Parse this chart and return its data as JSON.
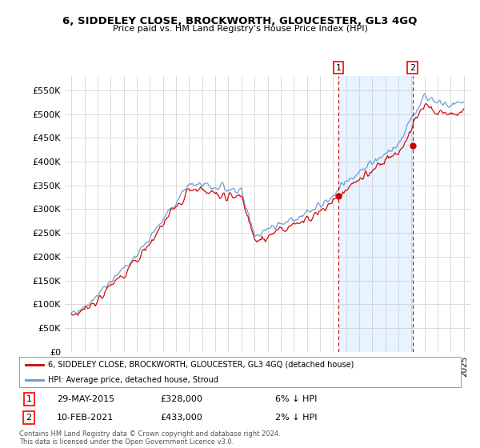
{
  "title": "6, SIDDELEY CLOSE, BROCKWORTH, GLOUCESTER, GL3 4GQ",
  "subtitle": "Price paid vs. HM Land Registry's House Price Index (HPI)",
  "ylim": [
    0,
    580000
  ],
  "yticks": [
    0,
    50000,
    100000,
    150000,
    200000,
    250000,
    300000,
    350000,
    400000,
    450000,
    500000,
    550000
  ],
  "ytick_labels": [
    "£0",
    "£50K",
    "£100K",
    "£150K",
    "£200K",
    "£250K",
    "£300K",
    "£350K",
    "£400K",
    "£450K",
    "£500K",
    "£550K"
  ],
  "hpi_color": "#6699CC",
  "price_color": "#CC0000",
  "sale1_t": 2015.42,
  "sale2_t": 2021.08,
  "sale1_price": 328000,
  "sale2_price": 433000,
  "sale1": {
    "date": "29-MAY-2015",
    "price": 328000,
    "pct": "6%",
    "dir": "↓"
  },
  "sale2": {
    "date": "10-FEB-2021",
    "price": 433000,
    "pct": "2%",
    "dir": "↓"
  },
  "legend_line1": "6, SIDDELEY CLOSE, BROCKWORTH, GLOUCESTER, GL3 4GQ (detached house)",
  "legend_line2": "HPI: Average price, detached house, Stroud",
  "footnote": "Contains HM Land Registry data © Crown copyright and database right 2024.\nThis data is licensed under the Open Government Licence v3.0.",
  "background_color": "#ffffff",
  "grid_color": "#cccccc",
  "shade_color": "#ddeeff"
}
